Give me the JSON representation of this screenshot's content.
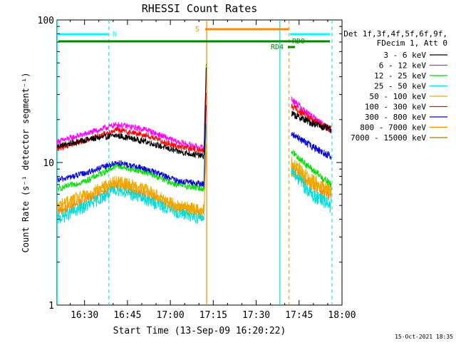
{
  "chart_data": {
    "type": "line",
    "title": "RHESSI Count Rates",
    "xlabel": "Start Time (13-Sep-09 16:20:22)",
    "ylabel": "Count Rate (s⁻¹ detector segment⁻¹)",
    "yscale": "log",
    "ylim": [
      1,
      100
    ],
    "xlim": [
      "16:20:22",
      "18:00"
    ],
    "x_ticks": [
      "16:30",
      "16:45",
      "17:00",
      "17:15",
      "17:30",
      "17:45",
      "18:00"
    ],
    "y_ticks": [
      "1",
      "10",
      "100"
    ],
    "legend_header": [
      "Det 1f,3f,4f,5f,6f,9f,",
      "FDecim 1, Att 0"
    ],
    "legend_placement": "right",
    "timestamp": "15-Oct-2021 18:35",
    "series": [
      {
        "name": "3 - 6 keV",
        "color": "#000000",
        "pre": [
          13,
          14.5,
          15.5,
          14,
          12,
          11,
          45
        ],
        "post": [
          22,
          19,
          17
        ]
      },
      {
        "name": "6 - 12 keV",
        "color": "#ff00ff",
        "pre": [
          14,
          16,
          18.5,
          17,
          14,
          12.5,
          40
        ],
        "post": [
          28,
          21,
          17
        ]
      },
      {
        "name": "12 - 25 keV",
        "color": "#00dd00",
        "pre": [
          6.5,
          7.5,
          9.5,
          8.5,
          7,
          6.5,
          50
        ],
        "post": [
          12,
          9,
          7
        ]
      },
      {
        "name": "25 - 50 keV",
        "color": "#00dddd",
        "pre": [
          4,
          5,
          6.5,
          5.5,
          4.5,
          4,
          20
        ],
        "post": [
          9,
          6,
          5
        ]
      },
      {
        "name": "50 - 100 keV",
        "color": "#eeaa00",
        "pre": [
          5,
          6,
          7.5,
          6.5,
          5,
          4.6,
          15
        ],
        "post": [
          10,
          7.5,
          6.5
        ]
      },
      {
        "name": "100 - 300 keV",
        "color": "#ff0000",
        "pre": [
          12.5,
          14.5,
          17,
          15.5,
          13,
          12,
          30
        ],
        "post": [
          25,
          20,
          17
        ]
      },
      {
        "name": "300 - 800 keV",
        "color": "#0000dd",
        "pre": [
          7.5,
          8.5,
          10,
          9,
          7.5,
          7,
          25
        ],
        "post": [
          16,
          13,
          11
        ]
      },
      {
        "name": "800 - 7000 keV",
        "color": "#ff8800",
        "pre": [
          4.5,
          5.5,
          7,
          6,
          4.8,
          4.4,
          12
        ],
        "post": [
          9,
          7,
          6
        ]
      },
      {
        "name": "7000 - 15000 keV",
        "color": "#aa7700",
        "pre": [],
        "post": []
      }
    ],
    "annotations": [
      {
        "label": "N",
        "color": "#00ffff"
      },
      {
        "label": "S",
        "color": "#ff8800"
      },
      {
        "label": "RD4",
        "color": "#008800"
      },
      {
        "label": "RD0",
        "color": "#008800"
      }
    ]
  }
}
